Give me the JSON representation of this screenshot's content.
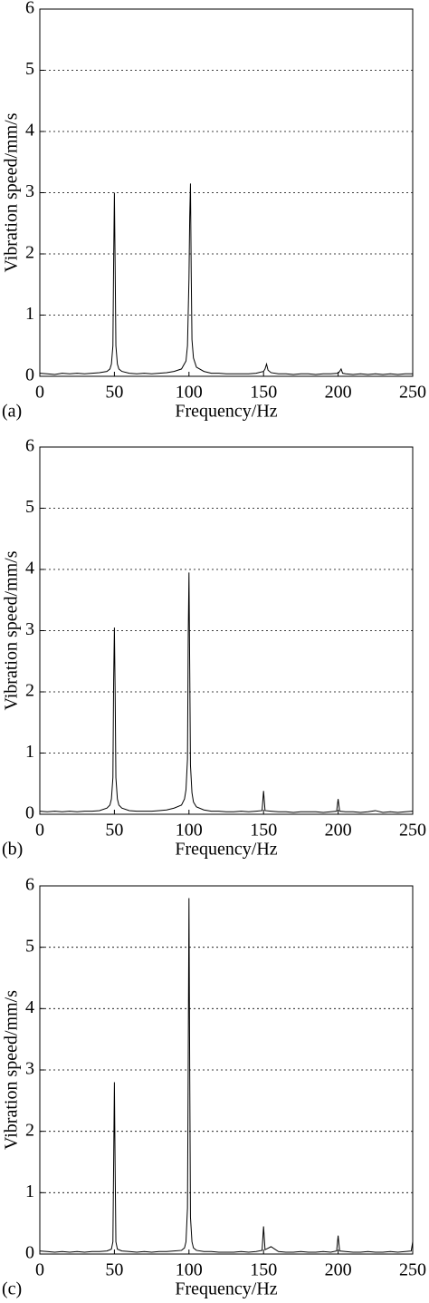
{
  "chart_data": [
    {
      "type": "line",
      "panel_label": "(a)",
      "xlabel": "Frequency/Hz",
      "ylabel": "Vibration speed/mm/s",
      "color": "#000000",
      "xlim": [
        0,
        250
      ],
      "ylim": [
        0,
        6
      ],
      "xticks": [
        0,
        50,
        100,
        150,
        200,
        250
      ],
      "yticks": [
        0,
        1,
        2,
        3,
        4,
        5,
        6
      ],
      "grid": true,
      "x": [
        0,
        5,
        10,
        15,
        20,
        25,
        30,
        35,
        40,
        45,
        47,
        48,
        49,
        49.5,
        50,
        50.5,
        51,
        52,
        53,
        55,
        60,
        65,
        70,
        75,
        80,
        85,
        90,
        95,
        98,
        99,
        100,
        100.5,
        101,
        101.5,
        102,
        103,
        105,
        110,
        115,
        120,
        125,
        130,
        135,
        140,
        145,
        150,
        151,
        152,
        153,
        155,
        160,
        165,
        170,
        175,
        180,
        185,
        190,
        195,
        200,
        201,
        202,
        203,
        205,
        210,
        215,
        220,
        225,
        230,
        235,
        240,
        245,
        250
      ],
      "values": [
        0.05,
        0.04,
        0.03,
        0.05,
        0.04,
        0.05,
        0.04,
        0.05,
        0.06,
        0.08,
        0.12,
        0.2,
        0.5,
        1.9,
        3.0,
        1.8,
        0.5,
        0.2,
        0.12,
        0.08,
        0.05,
        0.04,
        0.05,
        0.04,
        0.05,
        0.06,
        0.08,
        0.12,
        0.25,
        0.5,
        1.6,
        2.6,
        3.15,
        1.7,
        0.6,
        0.3,
        0.15,
        0.08,
        0.05,
        0.05,
        0.04,
        0.04,
        0.04,
        0.04,
        0.05,
        0.08,
        0.12,
        0.2,
        0.1,
        0.06,
        0.04,
        0.04,
        0.03,
        0.04,
        0.04,
        0.03,
        0.04,
        0.04,
        0.05,
        0.08,
        0.12,
        0.05,
        0.04,
        0.03,
        0.04,
        0.03,
        0.04,
        0.03,
        0.04,
        0.03,
        0.04,
        0.04
      ]
    },
    {
      "type": "line",
      "panel_label": "(b)",
      "xlabel": "Frequency/Hz",
      "ylabel": "Vibration speed/mm/s",
      "color": "#000000",
      "xlim": [
        0,
        250
      ],
      "ylim": [
        0,
        6
      ],
      "xticks": [
        0,
        50,
        100,
        150,
        200,
        250
      ],
      "yticks": [
        0,
        1,
        2,
        3,
        4,
        5,
        6
      ],
      "grid": true,
      "x": [
        0,
        5,
        10,
        15,
        20,
        25,
        30,
        35,
        40,
        45,
        47,
        48,
        49,
        49.5,
        50,
        50.5,
        51,
        52,
        53,
        55,
        60,
        65,
        70,
        75,
        80,
        85,
        90,
        95,
        97,
        98,
        99,
        99.5,
        100,
        100.5,
        101,
        102,
        103,
        105,
        110,
        115,
        120,
        125,
        130,
        135,
        140,
        145,
        149,
        150,
        151,
        155,
        160,
        165,
        170,
        175,
        180,
        185,
        190,
        195,
        199,
        200,
        201,
        205,
        210,
        215,
        220,
        225,
        230,
        235,
        240,
        245,
        250
      ],
      "values": [
        0.05,
        0.04,
        0.05,
        0.04,
        0.05,
        0.04,
        0.05,
        0.05,
        0.06,
        0.1,
        0.15,
        0.25,
        0.6,
        2.2,
        3.05,
        2.0,
        0.6,
        0.25,
        0.15,
        0.1,
        0.06,
        0.05,
        0.05,
        0.05,
        0.06,
        0.07,
        0.1,
        0.15,
        0.25,
        0.4,
        0.9,
        2.9,
        3.95,
        2.4,
        0.8,
        0.35,
        0.2,
        0.12,
        0.07,
        0.05,
        0.05,
        0.04,
        0.04,
        0.05,
        0.04,
        0.05,
        0.06,
        0.38,
        0.06,
        0.05,
        0.04,
        0.04,
        0.03,
        0.04,
        0.04,
        0.04,
        0.03,
        0.04,
        0.05,
        0.25,
        0.05,
        0.04,
        0.04,
        0.03,
        0.04,
        0.06,
        0.03,
        0.04,
        0.03,
        0.04,
        0.05
      ]
    },
    {
      "type": "line",
      "panel_label": "(c)",
      "xlabel": "Frequency/Hz",
      "ylabel": "Vibration speed/mm/s",
      "color": "#000000",
      "xlim": [
        0,
        250
      ],
      "ylim": [
        0,
        6
      ],
      "xticks": [
        0,
        50,
        100,
        150,
        200,
        250
      ],
      "yticks": [
        0,
        1,
        2,
        3,
        4,
        5,
        6
      ],
      "grid": true,
      "x": [
        0,
        5,
        10,
        15,
        20,
        25,
        30,
        35,
        40,
        45,
        48,
        49,
        49.5,
        50,
        50.5,
        51,
        52,
        55,
        60,
        65,
        70,
        75,
        80,
        85,
        90,
        95,
        97,
        98,
        99,
        99.5,
        100,
        100.5,
        101,
        102,
        103,
        105,
        110,
        115,
        120,
        125,
        130,
        135,
        140,
        145,
        149,
        150,
        151,
        155,
        160,
        165,
        170,
        175,
        180,
        185,
        190,
        195,
        199,
        200,
        201,
        205,
        210,
        215,
        220,
        225,
        230,
        235,
        240,
        245,
        249,
        250
      ],
      "values": [
        0.05,
        0.04,
        0.03,
        0.04,
        0.03,
        0.04,
        0.03,
        0.04,
        0.04,
        0.05,
        0.08,
        0.2,
        1.5,
        2.8,
        1.4,
        0.2,
        0.08,
        0.05,
        0.04,
        0.03,
        0.04,
        0.03,
        0.04,
        0.04,
        0.05,
        0.06,
        0.1,
        0.2,
        0.75,
        3.15,
        5.8,
        3.0,
        0.6,
        0.2,
        0.1,
        0.06,
        0.04,
        0.04,
        0.03,
        0.03,
        0.03,
        0.04,
        0.03,
        0.04,
        0.06,
        0.45,
        0.07,
        0.12,
        0.04,
        0.03,
        0.03,
        0.04,
        0.03,
        0.03,
        0.04,
        0.03,
        0.05,
        0.3,
        0.05,
        0.04,
        0.03,
        0.03,
        0.04,
        0.03,
        0.03,
        0.04,
        0.03,
        0.04,
        0.05,
        0.2
      ]
    }
  ]
}
